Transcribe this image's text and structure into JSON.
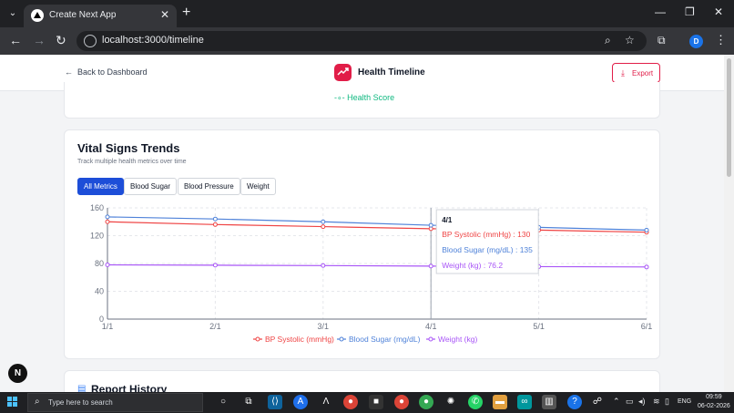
{
  "browser": {
    "tab_title": "Create Next App",
    "url": "localhost:3000/timeline",
    "profile_initial": "D"
  },
  "header": {
    "back_label": "Back to Dashboard",
    "title": "Health Timeline",
    "export_label": "Export"
  },
  "prev_card": {
    "legend_label": "Health Score"
  },
  "vitals": {
    "title": "Vital Signs Trends",
    "subtitle": "Track multiple health metrics over time",
    "filters": [
      {
        "label": "All Metrics",
        "active": true
      },
      {
        "label": "Blood Sugar",
        "active": false
      },
      {
        "label": "Blood Pressure",
        "active": false
      },
      {
        "label": "Weight",
        "active": false
      }
    ]
  },
  "chart_data": {
    "type": "line",
    "categories": [
      "1/1",
      "2/1",
      "3/1",
      "4/1",
      "5/1",
      "6/1"
    ],
    "ylim": [
      0,
      160
    ],
    "yticks": [
      0,
      40,
      80,
      120,
      160
    ],
    "grid": true,
    "legend_placement": "bottom",
    "series": [
      {
        "name": "BP Systolic (mmHg)",
        "color": "#ef4444",
        "values": [
          140,
          136,
          133,
          130,
          128,
          125
        ]
      },
      {
        "name": "Blood Sugar (mg/dL)",
        "color": "#4f82d9",
        "values": [
          147,
          144,
          140,
          135,
          132,
          128
        ]
      },
      {
        "name": "Weight (kg)",
        "color": "#a855f7",
        "values": [
          78,
          77.5,
          77,
          76.2,
          75.5,
          75
        ]
      }
    ],
    "tooltip": {
      "category": "4/1",
      "rows": [
        {
          "label": "BP Systolic (mmHg)",
          "value": "130"
        },
        {
          "label": "Blood Sugar (mg/dL)",
          "value": "135"
        },
        {
          "label": "Weight (kg)",
          "value": "76.2"
        }
      ]
    }
  },
  "next_card": {
    "title": "Report History"
  },
  "dev_badge": "N",
  "taskbar": {
    "search_placeholder": "Type here to search",
    "language": "ENG",
    "time": "09:59",
    "date": "06-02-2026"
  }
}
